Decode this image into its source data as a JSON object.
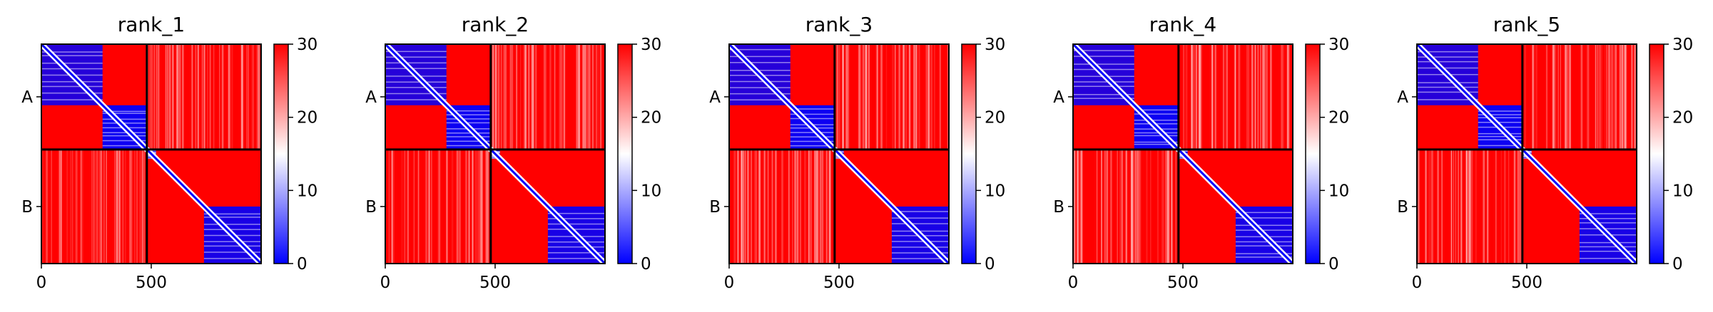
{
  "figure": {
    "colormap": {
      "low": "#0000ff",
      "mid": "#ffffff",
      "high": "#ff0000"
    }
  },
  "chart_data": [
    {
      "type": "heatmap",
      "title": "rank_1",
      "xticks": [
        0,
        500
      ],
      "xlim": [
        0,
        1000
      ],
      "chains": [
        {
          "label": "A",
          "start": 0,
          "end": 480
        },
        {
          "label": "B",
          "start": 480,
          "end": 1000
        }
      ],
      "colorbar": {
        "range": [
          0,
          30
        ],
        "ticks": [
          0,
          10,
          20,
          30
        ]
      }
    },
    {
      "type": "heatmap",
      "title": "rank_2",
      "xticks": [
        0,
        500
      ],
      "xlim": [
        0,
        1000
      ],
      "chains": [
        {
          "label": "A",
          "start": 0,
          "end": 480
        },
        {
          "label": "B",
          "start": 480,
          "end": 1000
        }
      ],
      "colorbar": {
        "range": [
          0,
          30
        ],
        "ticks": [
          0,
          10,
          20,
          30
        ]
      }
    },
    {
      "type": "heatmap",
      "title": "rank_3",
      "xticks": [
        0,
        500
      ],
      "xlim": [
        0,
        1000
      ],
      "chains": [
        {
          "label": "A",
          "start": 0,
          "end": 480
        },
        {
          "label": "B",
          "start": 480,
          "end": 1000
        }
      ],
      "colorbar": {
        "range": [
          0,
          30
        ],
        "ticks": [
          0,
          10,
          20,
          30
        ]
      }
    },
    {
      "type": "heatmap",
      "title": "rank_4",
      "xticks": [
        0,
        500
      ],
      "xlim": [
        0,
        1000
      ],
      "chains": [
        {
          "label": "A",
          "start": 0,
          "end": 480
        },
        {
          "label": "B",
          "start": 480,
          "end": 1000
        }
      ],
      "colorbar": {
        "range": [
          0,
          30
        ],
        "ticks": [
          0,
          10,
          20,
          30
        ]
      }
    },
    {
      "type": "heatmap",
      "title": "rank_5",
      "xticks": [
        0,
        500
      ],
      "xlim": [
        0,
        1000
      ],
      "chains": [
        {
          "label": "A",
          "start": 0,
          "end": 480
        },
        {
          "label": "B",
          "start": 480,
          "end": 1000
        }
      ],
      "colorbar": {
        "range": [
          0,
          30
        ],
        "ticks": [
          0,
          10,
          20,
          30
        ]
      }
    }
  ]
}
